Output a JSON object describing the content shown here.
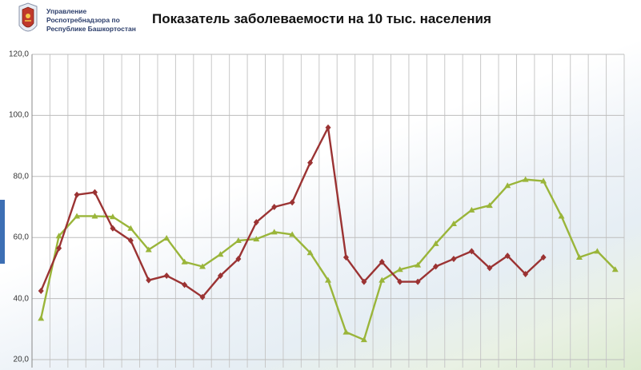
{
  "header": {
    "org_lines": [
      "Управление",
      "Роспотребнадзора по",
      "Республике Башкортостан"
    ],
    "title": "Показатель заболеваемости на 10 тыс. населения"
  },
  "chart_data": {
    "type": "line",
    "title": "Показатель заболеваемости на 10 тыс. населения",
    "xlabel": "",
    "ylabel": "",
    "ylim": [
      20,
      120
    ],
    "yticks": [
      "20,0",
      "40,0",
      "60,0",
      "80,0",
      "100,0",
      "120,0"
    ],
    "grid": true,
    "series": [
      {
        "color": "#9ab53a",
        "marker": "triangle",
        "values": [
          33.5,
          60.5,
          67.0,
          67.0,
          66.8,
          63.0,
          56.0,
          59.8,
          52.0,
          50.5,
          54.5,
          59.0,
          59.5,
          61.8,
          61.0,
          55.0,
          46.0,
          29.0,
          26.5,
          46.0,
          49.5,
          51.0,
          58.0,
          64.5,
          69.0,
          70.5,
          77.0,
          79.0,
          78.5,
          67.0,
          53.5,
          55.5,
          49.5
        ]
      },
      {
        "color": "#9b3333",
        "marker": "diamond",
        "values": [
          42.5,
          56.5,
          74.0,
          74.8,
          63.0,
          59.0,
          46.0,
          47.5,
          44.5,
          40.5,
          47.5,
          53.0,
          65.0,
          70.0,
          71.5,
          84.5,
          96.0,
          53.5,
          45.5,
          52.0,
          45.5,
          45.5,
          50.5,
          53.0,
          55.5,
          50.0,
          54.0,
          48.0,
          53.5
        ]
      }
    ]
  }
}
